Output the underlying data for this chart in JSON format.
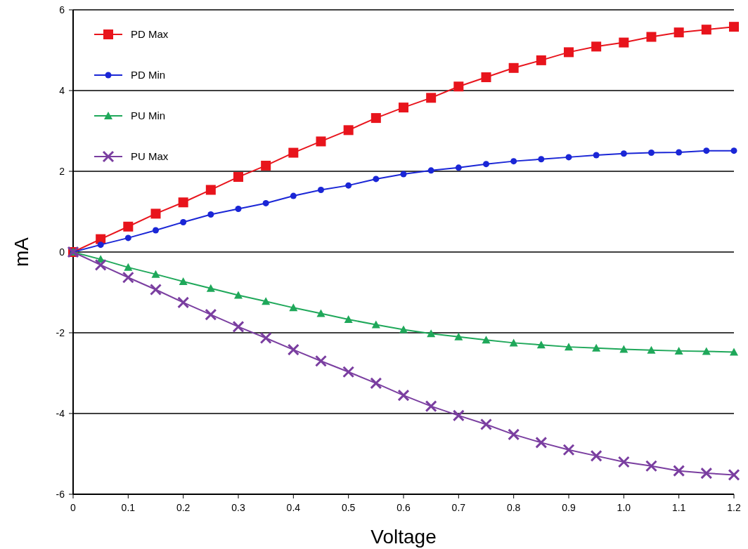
{
  "chart_data": {
    "type": "line",
    "xlabel": "Voltage",
    "ylabel": "mA",
    "x": [
      0,
      0.05,
      0.1,
      0.15,
      0.2,
      0.25,
      0.3,
      0.35,
      0.4,
      0.45,
      0.5,
      0.55,
      0.6,
      0.65,
      0.7,
      0.75,
      0.8,
      0.85,
      0.9,
      0.95,
      1.0,
      1.05,
      1.1,
      1.15,
      1.2
    ],
    "series": [
      {
        "name": "PD Max",
        "color": "#e8141c",
        "marker": "square",
        "values": [
          0,
          0.32,
          0.63,
          0.95,
          1.23,
          1.54,
          1.86,
          2.14,
          2.46,
          2.74,
          3.02,
          3.32,
          3.58,
          3.82,
          4.1,
          4.33,
          4.56,
          4.75,
          4.95,
          5.09,
          5.19,
          5.33,
          5.44,
          5.51,
          5.58
        ]
      },
      {
        "name": "PD Min",
        "color": "#1a26d6",
        "marker": "circle",
        "values": [
          0,
          0.18,
          0.35,
          0.54,
          0.74,
          0.93,
          1.07,
          1.21,
          1.39,
          1.54,
          1.65,
          1.81,
          1.93,
          2.02,
          2.09,
          2.18,
          2.25,
          2.3,
          2.35,
          2.4,
          2.44,
          2.46,
          2.47,
          2.51,
          2.51
        ]
      },
      {
        "name": "PU Min",
        "color": "#1fa85a",
        "marker": "triangle",
        "values": [
          0,
          -0.18,
          -0.38,
          -0.55,
          -0.73,
          -0.9,
          -1.07,
          -1.22,
          -1.38,
          -1.52,
          -1.67,
          -1.8,
          -1.92,
          -2.02,
          -2.1,
          -2.18,
          -2.25,
          -2.3,
          -2.35,
          -2.38,
          -2.41,
          -2.43,
          -2.45,
          -2.46,
          -2.48
        ]
      },
      {
        "name": "PU Max",
        "color": "#7a3ea0",
        "marker": "cross",
        "values": [
          0,
          -0.32,
          -0.63,
          -0.93,
          -1.25,
          -1.55,
          -1.85,
          -2.13,
          -2.42,
          -2.7,
          -2.97,
          -3.25,
          -3.55,
          -3.82,
          -4.05,
          -4.27,
          -4.52,
          -4.72,
          -4.9,
          -5.05,
          -5.2,
          -5.3,
          -5.42,
          -5.48,
          -5.52
        ]
      }
    ],
    "xlim": [
      0,
      1.2
    ],
    "xticks": [
      0,
      0.1,
      0.2,
      0.3,
      0.4,
      0.5,
      0.6,
      0.7,
      0.8,
      0.9,
      {
        "value": 1,
        "label": "1.0"
      },
      1.1,
      1.2
    ],
    "ylim": [
      -6,
      6
    ],
    "yticks": [
      -6,
      -4,
      -2,
      0,
      2,
      4,
      6
    ],
    "grid": "y",
    "legend": "top left",
    "line_style": "solid"
  }
}
